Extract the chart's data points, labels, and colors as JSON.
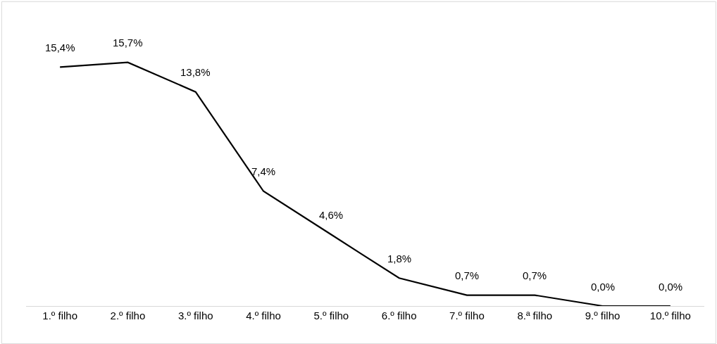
{
  "chart_data": {
    "type": "line",
    "categories": [
      "1.º filho",
      "2.º filho",
      "3.º filho",
      "4.º filho",
      "5.º filho",
      "6.º filho",
      "7.º filho",
      "8.ª filho",
      "9.º filho",
      "10.º filho"
    ],
    "values": [
      15.4,
      15.7,
      13.8,
      7.4,
      4.6,
      1.8,
      0.7,
      0.7,
      0.0,
      0.0
    ],
    "value_labels": [
      "15,4%",
      "15,7%",
      "13,8%",
      "7,4%",
      "4,6%",
      "1,8%",
      "0,7%",
      "0,7%",
      "0,0%",
      "0,0%"
    ],
    "color": "#000000",
    "legend": false,
    "marker": "none",
    "line_style": "solid",
    "tick_labels": "x"
  }
}
